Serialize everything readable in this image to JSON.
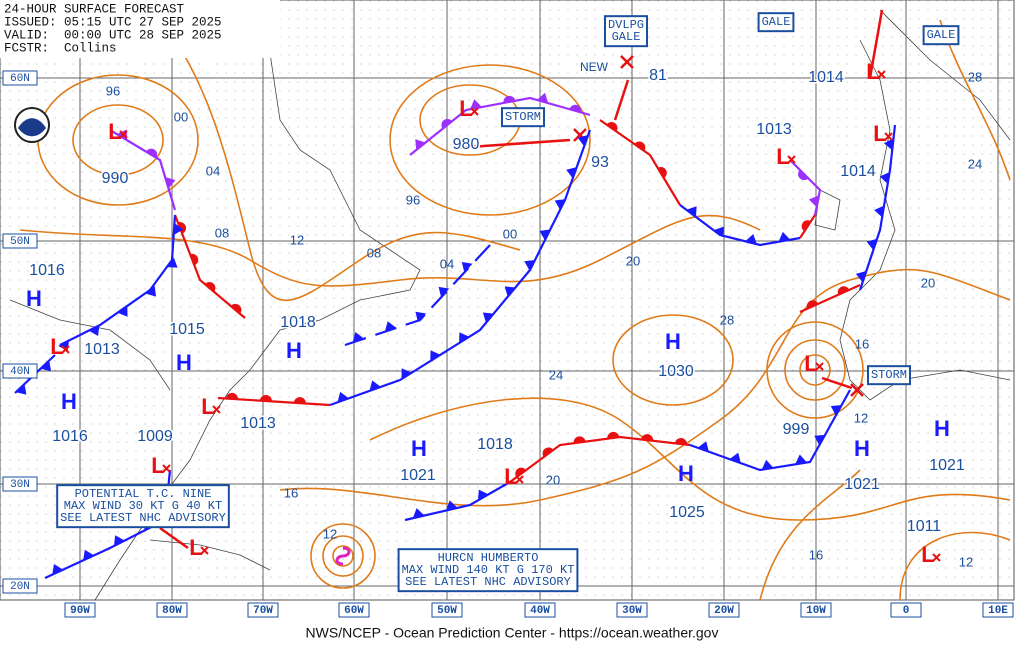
{
  "header": {
    "title": "24-HOUR SURFACE FORECAST",
    "issued": "ISSUED: 05:15 UTC 27 SEP 2025",
    "valid": "VALID:  00:00 UTC 28 SEP 2025",
    "forecaster": "FCSTR:  Collins"
  },
  "latitude_labels": [
    "60N",
    "50N",
    "40N",
    "30N",
    "20N"
  ],
  "longitude_labels": [
    "90W",
    "80W",
    "70W",
    "60W",
    "50W",
    "40W",
    "30W",
    "20W",
    "10W",
    "0",
    "10E"
  ],
  "notices": [
    {
      "lines": [
        "DVLPG",
        "GALE"
      ]
    },
    {
      "lines": [
        "GALE"
      ]
    },
    {
      "lines": [
        "GALE"
      ]
    },
    {
      "lines": [
        "STORM"
      ]
    },
    {
      "lines": [
        "STORM"
      ]
    },
    {
      "lines": [
        "POTENTIAL T.C. NINE",
        "MAX WIND 30 KT G 40 KT",
        "SEE LATEST NHC ADVISORY"
      ]
    },
    {
      "lines": [
        "HURCN HUMBERTO",
        "MAX WIND 140 KT G 170 KT",
        "SEE LATEST NHC ADVISORY"
      ]
    }
  ],
  "new_label": "NEW",
  "systems": [
    "L",
    "L",
    "L",
    "L",
    "L",
    "H",
    "L",
    "H",
    "H",
    "H",
    "L",
    "L",
    "H",
    "L",
    "H",
    "L",
    "H",
    "H",
    "H",
    "L",
    "L"
  ],
  "pressure_labels": [
    "990",
    "980",
    "93",
    "81",
    "1014",
    "1013",
    "1014",
    "1016",
    "1013",
    "1015",
    "1018",
    "1016",
    "1009",
    "1013",
    "1030",
    "999",
    "1021",
    "1018",
    "1025",
    "1021",
    "1021",
    "1011"
  ],
  "isobar_labels": [
    "96",
    "00",
    "04",
    "08",
    "12",
    "08",
    "04",
    "00",
    "96",
    "20",
    "28",
    "24",
    "20",
    "16",
    "12",
    "20",
    "16",
    "12",
    "16",
    "12",
    "28",
    "24"
  ],
  "footer": "NWS/NCEP - Ocean Prediction Center - https://ocean.weather.gov"
}
